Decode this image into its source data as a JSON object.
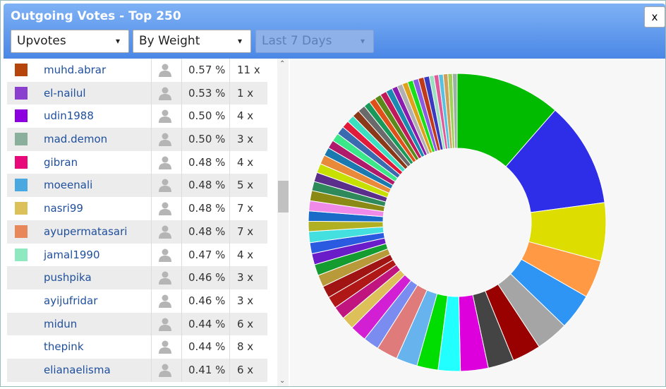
{
  "header": {
    "title": "Outgoing Votes - Top 250",
    "close": "x",
    "dropdowns": [
      "Upvotes",
      "By Weight",
      "Last 7 Days"
    ]
  },
  "table": {
    "rows": [
      {
        "color": "#b5450b",
        "name": "muhd.abrar",
        "percent": "0.57 %",
        "count": "11 x"
      },
      {
        "color": "#8a3fcf",
        "name": "el-nailul",
        "percent": "0.53 %",
        "count": "1 x"
      },
      {
        "color": "#8c00e0",
        "name": "udin1988",
        "percent": "0.50 %",
        "count": "4 x"
      },
      {
        "color": "#8aaf9c",
        "name": "mad.demon",
        "percent": "0.50 %",
        "count": "3 x"
      },
      {
        "color": "#e8087a",
        "name": "gibran",
        "percent": "0.48 %",
        "count": "4 x"
      },
      {
        "color": "#4aa8e0",
        "name": "moeenali",
        "percent": "0.48 %",
        "count": "5 x"
      },
      {
        "color": "#dcc05a",
        "name": "nasri99",
        "percent": "0.48 %",
        "count": "7 x"
      },
      {
        "color": "#e8875a",
        "name": "ayupermatasari",
        "percent": "0.48 %",
        "count": "7 x"
      },
      {
        "color": "#8ee8c0",
        "name": "jamal1990",
        "percent": "0.47 %",
        "count": "4 x"
      },
      {
        "color": null,
        "name": "pushpika",
        "percent": "0.46 %",
        "count": "3 x"
      },
      {
        "color": null,
        "name": "ayijufridar",
        "percent": "0.46 %",
        "count": "3 x"
      },
      {
        "color": null,
        "name": "midun",
        "percent": "0.44 %",
        "count": "6 x"
      },
      {
        "color": null,
        "name": "thepink",
        "percent": "0.44 %",
        "count": "8 x"
      },
      {
        "color": null,
        "name": "elianaelisma",
        "percent": "0.41 %",
        "count": "6 x"
      }
    ]
  },
  "chart_data": {
    "type": "pie",
    "donut": true,
    "values": [
      11.4,
      11.4,
      6.3,
      4.1,
      3.9,
      3.5,
      3.1,
      2.8,
      3.0,
      2.4,
      2.3,
      2.3,
      2.3,
      1.7,
      1.8,
      1.4,
      1.4,
      1.3,
      1.3,
      1.3,
      1.2,
      1.2,
      1.2,
      1.2,
      1.1,
      1.1,
      1.1,
      1.1,
      1.0,
      1.0,
      1.0,
      1.0,
      0.9,
      0.9,
      0.9,
      0.9,
      0.8,
      0.8,
      0.8,
      0.8,
      0.7,
      0.7,
      0.7,
      0.7,
      0.7,
      0.6,
      0.6,
      0.6,
      0.6,
      0.6,
      0.6,
      0.6,
      0.5,
      0.5,
      0.5,
      0.5,
      0.5,
      0.5
    ],
    "colors": [
      "#00bb00",
      "#2e2ee8",
      "#dddd00",
      "#ff9944",
      "#2e95f5",
      "#a5a5a5",
      "#990000",
      "#444444",
      "#dd00dd",
      "#22ffff",
      "#00dd00",
      "#66b3ee",
      "#e07b7b",
      "#7a8cf0",
      "#d31fd3",
      "#ddc05a",
      "#c0147f",
      "#b01818",
      "#a01414",
      "#b89a3a",
      "#149c30",
      "#6a1cc8",
      "#2a5ae0",
      "#44e0e0",
      "#b0b022",
      "#1a6ac8",
      "#f08ae8",
      "#8a8a14",
      "#2e8a5a",
      "#5a2e8a",
      "#c8e000",
      "#e88a3a",
      "#1a7ab0",
      "#b01a6a",
      "#3ae88a",
      "#3a6ab0",
      "#e01a3a",
      "#3ae0c0",
      "#8a3a1a",
      "#6a6a6a",
      "#1a9a5a",
      "#e0501a",
      "#5a8a1a",
      "#c01a5a",
      "#1a8ab0",
      "#8a1ab0",
      "#b0b0b0",
      "#e0a01a",
      "#1ae01a",
      "#8a5ae0",
      "#c03a1a",
      "#3a3ac0",
      "#9ae0c0",
      "#e05a9a",
      "#5ac0e0",
      "#d0a05a",
      "#a0d05a",
      "#9ab0a0"
    ]
  }
}
